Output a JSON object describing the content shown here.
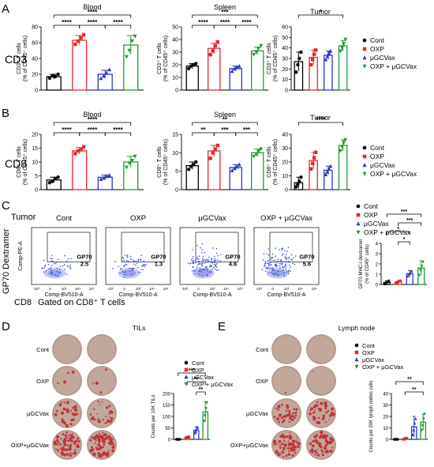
{
  "colors": {
    "cont": "#000000",
    "oxp": "#e8262b",
    "vax": "#2b35c9",
    "combo": "#1f9a2e",
    "flow": "#3a4fd6",
    "well": "#b59a8d",
    "spot": "#c0323c"
  },
  "legend": [
    "Cont",
    "OXP",
    "μGCVax",
    "OXP + μGCVax"
  ],
  "panels": {
    "A": {
      "letter": "A",
      "row": "CD3"
    },
    "B": {
      "letter": "B",
      "row": "CD8"
    },
    "C": {
      "letter": "C",
      "tissue": "Tumor",
      "yaxis": "GP70 Dextramer",
      "xaxis": "CD8",
      "gated": "Gated on CD8⁺ T cells"
    },
    "D": {
      "letter": "D",
      "title": "TILs"
    },
    "E": {
      "letter": "E",
      "title": "Lymph node"
    }
  },
  "flow": {
    "ylabel": "Comp-PE-A",
    "xlabel": "Comp-BV510-A",
    "gate": "GP70",
    "ticks_x": [
      "-10³",
      "0",
      "10³",
      "10⁴",
      "10⁵"
    ],
    "plots": [
      {
        "title": "Cont",
        "value": "2.5"
      },
      {
        "title": "OXP",
        "value": "1.3"
      },
      {
        "title": "μGCVax",
        "value": "4.6"
      },
      {
        "title": "OXP + μGCVax",
        "value": "5.6"
      }
    ]
  },
  "plates": {
    "row_labels_D": [
      "Cont",
      "OXP",
      "μGCVax",
      "OXP+μGCVax"
    ],
    "row_labels_E": [
      "Cont",
      "OXP",
      "μGCVax",
      "OXP+μGCVax"
    ],
    "spot_density_D": [
      0,
      0.05,
      0.4,
      1.0
    ],
    "spot_density_E": [
      0,
      0.02,
      0.5,
      0.9
    ]
  },
  "chart_data": [
    {
      "id": "A-blood",
      "type": "bar",
      "title": "Blood",
      "ylabel": "CD3⁺ T cells (% of CD45⁺ cells)",
      "ylim": [
        0,
        80
      ],
      "yticks": [
        0,
        20,
        40,
        60,
        80
      ],
      "categories": [
        "Cont",
        "OXP",
        "μGCVax",
        "OXP + μGCVax"
      ],
      "values": [
        17,
        63,
        20,
        57
      ],
      "err": [
        3,
        6,
        5,
        12
      ],
      "points": [
        [
          15,
          18,
          17,
          20
        ],
        [
          58,
          62,
          66,
          70
        ],
        [
          15,
          18,
          22,
          26
        ],
        [
          42,
          50,
          62,
          68
        ]
      ],
      "sig": [
        {
          "a": 0,
          "b": 1,
          "label": "****",
          "level": 1
        },
        {
          "a": 1,
          "b": 2,
          "label": "****",
          "level": 1
        },
        {
          "a": 2,
          "b": 3,
          "label": "****",
          "level": 1
        },
        {
          "a": 0,
          "b": 3,
          "label": "****",
          "level": 2
        }
      ]
    },
    {
      "id": "A-spleen",
      "type": "bar",
      "title": "Spleen",
      "ylabel": "CD3⁺ T cells (% of CD45⁺ cells)",
      "ylim": [
        0,
        50
      ],
      "yticks": [
        0,
        10,
        20,
        30,
        40,
        50
      ],
      "categories": [
        "Cont",
        "OXP",
        "μGCVax",
        "OXP + μGCVax"
      ],
      "values": [
        19,
        33,
        17,
        31
      ],
      "err": [
        2,
        4,
        2,
        3
      ],
      "points": [
        [
          17,
          19,
          20,
          21
        ],
        [
          28,
          31,
          35,
          38
        ],
        [
          15,
          17,
          18,
          19
        ],
        [
          28,
          30,
          33,
          35
        ]
      ],
      "sig": [
        {
          "a": 0,
          "b": 1,
          "label": "****",
          "level": 1
        },
        {
          "a": 1,
          "b": 2,
          "label": "****",
          "level": 1
        },
        {
          "a": 2,
          "b": 3,
          "label": "****",
          "level": 1
        },
        {
          "a": 0,
          "b": 3,
          "label": "***",
          "level": 2
        }
      ]
    },
    {
      "id": "A-tumor",
      "type": "bar",
      "title": "Tumor",
      "ylabel": "CD3⁺ T cells (% of CD45⁺ cells)",
      "ylim": [
        0,
        60
      ],
      "yticks": [
        0,
        10,
        20,
        30,
        40,
        50,
        60
      ],
      "categories": [
        "Cont",
        "OXP",
        "μGCVax",
        "OXP + μGCVax"
      ],
      "values": [
        27,
        31,
        33,
        42
      ],
      "err": [
        9,
        7,
        4,
        5
      ],
      "points": [
        [
          17,
          24,
          30,
          36
        ],
        [
          24,
          29,
          34,
          38
        ],
        [
          29,
          32,
          35,
          37
        ],
        [
          37,
          40,
          44,
          48
        ]
      ],
      "sig": [
        {
          "a": 0,
          "b": 3,
          "label": "*",
          "level": 2
        }
      ]
    },
    {
      "id": "B-blood",
      "type": "bar",
      "title": "Blood",
      "ylabel": "CD8⁺ T cells (% of CD45⁺ cells)",
      "ylim": [
        0,
        20
      ],
      "yticks": [
        0,
        5,
        10,
        15,
        20
      ],
      "categories": [
        "Cont",
        "OXP",
        "μGCVax",
        "OXP + μGCVax"
      ],
      "values": [
        3.5,
        14,
        4.5,
        10
      ],
      "err": [
        1,
        1.2,
        0.8,
        2
      ],
      "points": [
        [
          2.5,
          3,
          4,
          4.5
        ],
        [
          13,
          14,
          14.5,
          15.5
        ],
        [
          3.8,
          4.2,
          4.8,
          5.2
        ],
        [
          8,
          9.5,
          10.5,
          12
        ]
      ],
      "sig": [
        {
          "a": 0,
          "b": 1,
          "label": "****",
          "level": 1
        },
        {
          "a": 1,
          "b": 2,
          "label": "****",
          "level": 1
        },
        {
          "a": 2,
          "b": 3,
          "label": "****",
          "level": 1
        },
        {
          "a": 0,
          "b": 3,
          "label": "****",
          "level": 2
        }
      ]
    },
    {
      "id": "B-spleen",
      "type": "bar",
      "title": "Spleen",
      "ylabel": "CD8⁺ T cells (% of CD45⁺ cells)",
      "ylim": [
        0,
        15
      ],
      "yticks": [
        0,
        5,
        10,
        15
      ],
      "categories": [
        "Cont",
        "OXP",
        "μGCVax",
        "OXP + μGCVax"
      ],
      "values": [
        6.5,
        10.5,
        6,
        10
      ],
      "err": [
        1,
        1.5,
        0.8,
        1
      ],
      "points": [
        [
          5.5,
          6.3,
          6.8,
          7.5
        ],
        [
          8.5,
          10,
          11,
          12
        ],
        [
          5.2,
          5.8,
          6.2,
          6.8
        ],
        [
          9,
          9.6,
          10.4,
          11
        ]
      ],
      "sig": [
        {
          "a": 0,
          "b": 1,
          "label": "**",
          "level": 1
        },
        {
          "a": 1,
          "b": 2,
          "label": "***",
          "level": 1
        },
        {
          "a": 2,
          "b": 3,
          "label": "***",
          "level": 1
        },
        {
          "a": 0,
          "b": 3,
          "label": "**",
          "level": 2
        }
      ]
    },
    {
      "id": "B-tumor",
      "type": "bar",
      "title": "Tumor",
      "ylabel": "CD8⁺ T cells (% of CD45⁺ cells)",
      "ylim": [
        0,
        40
      ],
      "yticks": [
        0,
        10,
        20,
        30,
        40
      ],
      "categories": [
        "Cont",
        "OXP",
        "μGCVax",
        "OXP + μGCVax"
      ],
      "values": [
        5,
        21,
        14,
        32
      ],
      "err": [
        4,
        6,
        3,
        4
      ],
      "points": [
        [
          2,
          4,
          6,
          9
        ],
        [
          15,
          19,
          23,
          27
        ],
        [
          11,
          13,
          15,
          17
        ],
        [
          28,
          31,
          34,
          36
        ]
      ],
      "sig": [
        {
          "a": 0,
          "b": 3,
          "label": "****",
          "level": 2
        }
      ]
    },
    {
      "id": "C-dex",
      "type": "bar",
      "title": "",
      "ylabel": "GP70 MHC-I dextramer (% of CD45⁺ cells)",
      "ylim": [
        0,
        4
      ],
      "yticks": [
        0,
        1,
        2,
        3,
        4
      ],
      "categories": [
        "Cont",
        "OXP",
        "μGCVax",
        "OXP + μGCVax"
      ],
      "values": [
        0.2,
        0.25,
        1.05,
        1.6
      ],
      "err": [
        0.15,
        0.1,
        0.3,
        0.7
      ],
      "points": [
        [
          0.05,
          0.15,
          0.25,
          0.35
        ],
        [
          0.15,
          0.2,
          0.3,
          0.35
        ],
        [
          0.8,
          1,
          1.1,
          1.3
        ],
        [
          0.9,
          1.4,
          1.8,
          2.2
        ]
      ],
      "sig": [
        {
          "a": 1,
          "b": 2,
          "label": "*",
          "level": 1
        },
        {
          "a": 0,
          "b": 2,
          "label": "*",
          "level": 2
        },
        {
          "a": 1,
          "b": 3,
          "label": "***",
          "level": 3
        },
        {
          "a": 0,
          "b": 3,
          "label": "***",
          "level": 4
        }
      ]
    },
    {
      "id": "D-tils",
      "type": "bar",
      "title": "",
      "ylabel": "Counts per 10K TILs",
      "ylim": [
        0,
        200
      ],
      "yticks": [
        0,
        50,
        100,
        150,
        200
      ],
      "categories": [
        "Cont",
        "OXP",
        "μGCVax",
        "OXP + μGCVax"
      ],
      "values": [
        0,
        8,
        40,
        120
      ],
      "err": [
        0,
        5,
        15,
        45
      ],
      "points": [
        [
          0,
          0,
          0,
          0
        ],
        [
          5,
          7,
          9,
          11
        ],
        [
          28,
          36,
          44,
          52
        ],
        [
          80,
          105,
          135,
          160
        ]
      ],
      "sig": [
        {
          "a": 2,
          "b": 3,
          "label": "**",
          "level": 1
        },
        {
          "a": 1,
          "b": 3,
          "label": "**",
          "level": 2
        },
        {
          "a": 0,
          "b": 3,
          "label": "***",
          "level": 3
        }
      ]
    },
    {
      "id": "E-ln",
      "type": "bar",
      "title": "",
      "ylabel": "Counts per 20K lymph nodes cells",
      "ylim": [
        0,
        40
      ],
      "yticks": [
        0,
        10,
        20,
        30,
        40
      ],
      "categories": [
        "Cont",
        "OXP",
        "μGCVax",
        "OXP + μGCVax"
      ],
      "values": [
        0,
        0.5,
        11,
        15
      ],
      "err": [
        0,
        0.5,
        9,
        7
      ],
      "points": [
        [
          0,
          0,
          0,
          0
        ],
        [
          0,
          0.3,
          0.7,
          1
        ],
        [
          4,
          8,
          14,
          18
        ],
        [
          8,
          12,
          18,
          22
        ]
      ],
      "sig": [
        {
          "a": 1,
          "b": 3,
          "label": "**",
          "level": 1
        },
        {
          "a": 0,
          "b": 3,
          "label": "**",
          "level": 2
        }
      ]
    }
  ]
}
